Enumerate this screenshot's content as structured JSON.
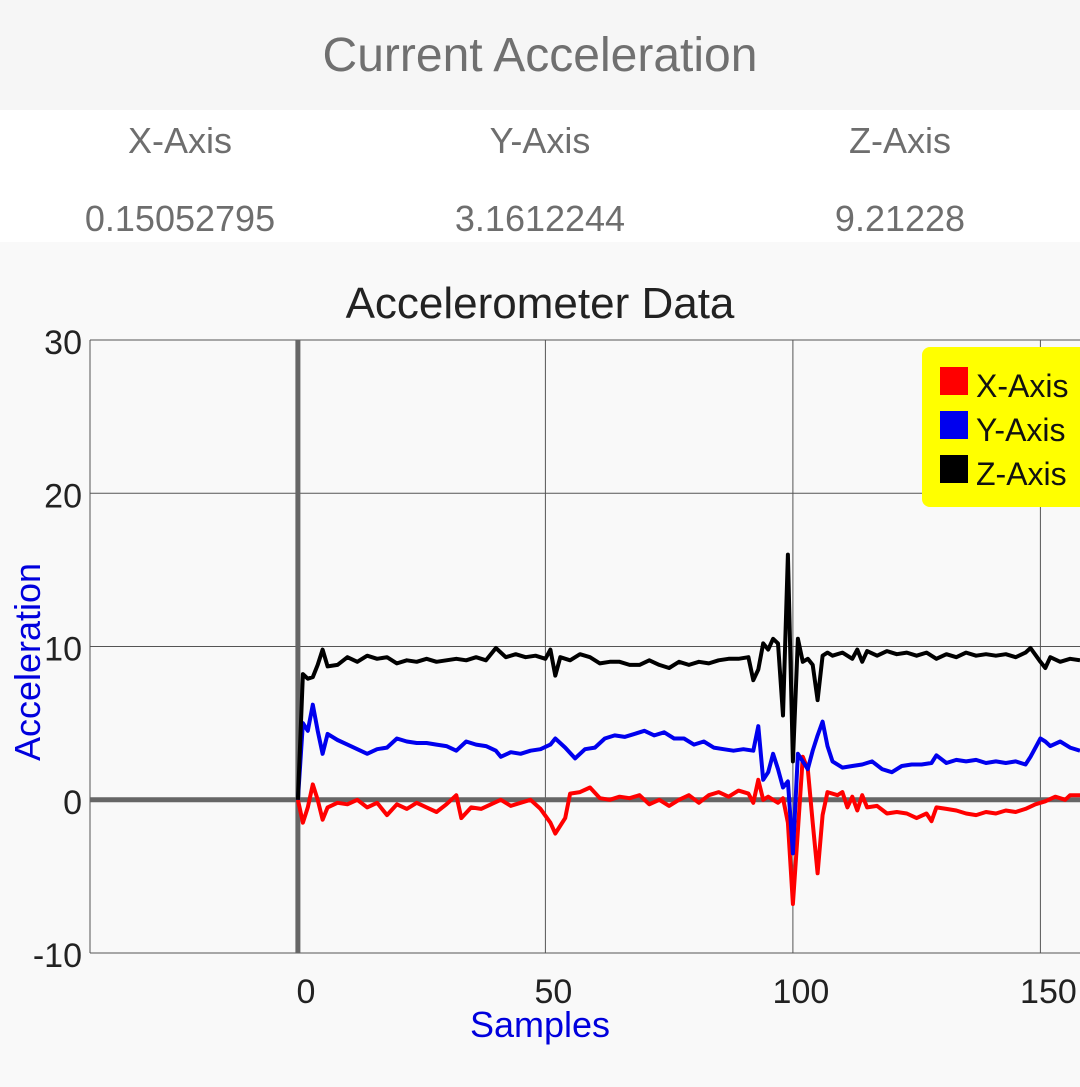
{
  "header": {
    "title": "Current Acceleration"
  },
  "readings": [
    {
      "label": "X-Axis",
      "value": "0.15052795"
    },
    {
      "label": "Y-Axis",
      "value": "3.1612244"
    },
    {
      "label": "Z-Axis",
      "value": "9.21228"
    }
  ],
  "chart_data": {
    "type": "line",
    "title": "Accelerometer Data",
    "xlabel": "Samples",
    "ylabel": "Acceleration",
    "xlim": [
      -42,
      158
    ],
    "ylim": [
      -10,
      30
    ],
    "x_ticks": [
      0,
      50,
      100,
      150
    ],
    "y_ticks": [
      30,
      20,
      10,
      0,
      -10
    ],
    "grid": true,
    "legend_position": "top-right",
    "colors": {
      "x": "#ff0000",
      "y": "#0000ee",
      "z": "#000000",
      "legend_bg": "#ffff00",
      "axis_label": "#0000dd"
    },
    "series": [
      {
        "name": "X-Axis",
        "color": "#ff0000",
        "points": [
          [
            0,
            0
          ],
          [
            1,
            -1.5
          ],
          [
            2,
            -0.5
          ],
          [
            3,
            1.0
          ],
          [
            4,
            0
          ],
          [
            5,
            -1.3
          ],
          [
            6,
            -0.5
          ],
          [
            8,
            -0.2
          ],
          [
            10,
            -0.3
          ],
          [
            12,
            0
          ],
          [
            14,
            -0.5
          ],
          [
            16,
            -0.2
          ],
          [
            18,
            -1.0
          ],
          [
            20,
            -0.3
          ],
          [
            22,
            -0.6
          ],
          [
            24,
            -0.2
          ],
          [
            26,
            -0.5
          ],
          [
            28,
            -0.8
          ],
          [
            30,
            -0.3
          ],
          [
            32,
            0.3
          ],
          [
            33,
            -1.2
          ],
          [
            35,
            -0.5
          ],
          [
            37,
            -0.6
          ],
          [
            39,
            -0.3
          ],
          [
            41,
            0
          ],
          [
            43,
            -0.4
          ],
          [
            45,
            -0.2
          ],
          [
            47,
            0
          ],
          [
            49,
            -0.6
          ],
          [
            51,
            -1.5
          ],
          [
            52,
            -2.2
          ],
          [
            54,
            -1.2
          ],
          [
            55,
            0.4
          ],
          [
            57,
            0.5
          ],
          [
            59,
            0.8
          ],
          [
            61,
            0.1
          ],
          [
            63,
            0
          ],
          [
            65,
            0.2
          ],
          [
            67,
            0.1
          ],
          [
            69,
            0.3
          ],
          [
            71,
            -0.3
          ],
          [
            73,
            0
          ],
          [
            75,
            -0.4
          ],
          [
            77,
            0
          ],
          [
            79,
            0.3
          ],
          [
            81,
            -0.2
          ],
          [
            83,
            0.3
          ],
          [
            85,
            0.5
          ],
          [
            87,
            0.2
          ],
          [
            89,
            0.6
          ],
          [
            91,
            0.4
          ],
          [
            92,
            -0.2
          ],
          [
            93,
            1.3
          ],
          [
            94,
            0
          ],
          [
            95,
            0.2
          ],
          [
            96,
            0
          ],
          [
            97,
            -0.2
          ],
          [
            98,
            0.1
          ],
          [
            99,
            -1.5
          ],
          [
            100,
            -6.8
          ],
          [
            101,
            -2.0
          ],
          [
            102,
            2.8
          ],
          [
            103,
            2.0
          ],
          [
            104,
            -1.5
          ],
          [
            105,
            -4.8
          ],
          [
            106,
            -1.0
          ],
          [
            107,
            0.5
          ],
          [
            109,
            0.3
          ],
          [
            110,
            0.5
          ],
          [
            111,
            -0.5
          ],
          [
            112,
            0.2
          ],
          [
            113,
            -0.7
          ],
          [
            114,
            0.3
          ],
          [
            115,
            -0.5
          ],
          [
            117,
            -0.4
          ],
          [
            119,
            -0.9
          ],
          [
            121,
            -0.8
          ],
          [
            123,
            -0.9
          ],
          [
            125,
            -1.2
          ],
          [
            127,
            -0.9
          ],
          [
            128,
            -1.4
          ],
          [
            129,
            -0.5
          ],
          [
            131,
            -0.6
          ],
          [
            133,
            -0.7
          ],
          [
            135,
            -0.9
          ],
          [
            137,
            -1.0
          ],
          [
            139,
            -0.8
          ],
          [
            141,
            -0.9
          ],
          [
            143,
            -0.7
          ],
          [
            145,
            -0.8
          ],
          [
            147,
            -0.6
          ],
          [
            149,
            -0.3
          ],
          [
            151,
            -0.1
          ],
          [
            153,
            0.2
          ],
          [
            155,
            0
          ],
          [
            156,
            0.3
          ],
          [
            158,
            0.3
          ]
        ]
      },
      {
        "name": "Y-Axis",
        "color": "#0000ee",
        "points": [
          [
            0,
            0
          ],
          [
            1,
            5.0
          ],
          [
            2,
            4.5
          ],
          [
            3,
            6.2
          ],
          [
            4,
            4.5
          ],
          [
            5,
            3.0
          ],
          [
            6,
            4.3
          ],
          [
            8,
            3.9
          ],
          [
            10,
            3.6
          ],
          [
            12,
            3.3
          ],
          [
            14,
            3.0
          ],
          [
            16,
            3.3
          ],
          [
            18,
            3.4
          ],
          [
            20,
            4.0
          ],
          [
            22,
            3.8
          ],
          [
            24,
            3.7
          ],
          [
            26,
            3.7
          ],
          [
            28,
            3.6
          ],
          [
            30,
            3.5
          ],
          [
            32,
            3.2
          ],
          [
            34,
            3.8
          ],
          [
            36,
            3.6
          ],
          [
            38,
            3.5
          ],
          [
            40,
            3.2
          ],
          [
            41,
            2.8
          ],
          [
            43,
            3.1
          ],
          [
            45,
            3.0
          ],
          [
            47,
            3.2
          ],
          [
            49,
            3.3
          ],
          [
            51,
            3.6
          ],
          [
            52,
            4.0
          ],
          [
            54,
            3.4
          ],
          [
            56,
            2.7
          ],
          [
            58,
            3.3
          ],
          [
            60,
            3.4
          ],
          [
            62,
            4.0
          ],
          [
            64,
            4.2
          ],
          [
            66,
            4.1
          ],
          [
            68,
            4.3
          ],
          [
            70,
            4.5
          ],
          [
            72,
            4.2
          ],
          [
            74,
            4.4
          ],
          [
            76,
            4.0
          ],
          [
            78,
            4.0
          ],
          [
            80,
            3.6
          ],
          [
            82,
            3.8
          ],
          [
            84,
            3.4
          ],
          [
            86,
            3.3
          ],
          [
            88,
            3.2
          ],
          [
            90,
            3.3
          ],
          [
            92,
            3.2
          ],
          [
            93,
            4.8
          ],
          [
            94,
            1.3
          ],
          [
            95,
            1.8
          ],
          [
            96,
            3.0
          ],
          [
            97,
            2.0
          ],
          [
            98,
            0.8
          ],
          [
            99,
            1.2
          ],
          [
            100,
            -3.5
          ],
          [
            101,
            3.0
          ],
          [
            102,
            2.5
          ],
          [
            103,
            2.0
          ],
          [
            104,
            3.2
          ],
          [
            105,
            4.2
          ],
          [
            106,
            5.1
          ],
          [
            107,
            3.5
          ],
          [
            108,
            2.5
          ],
          [
            110,
            2.1
          ],
          [
            112,
            2.2
          ],
          [
            114,
            2.3
          ],
          [
            116,
            2.5
          ],
          [
            118,
            2.0
          ],
          [
            120,
            1.8
          ],
          [
            122,
            2.2
          ],
          [
            124,
            2.3
          ],
          [
            126,
            2.3
          ],
          [
            128,
            2.4
          ],
          [
            129,
            2.9
          ],
          [
            131,
            2.4
          ],
          [
            133,
            2.6
          ],
          [
            135,
            2.5
          ],
          [
            137,
            2.6
          ],
          [
            139,
            2.4
          ],
          [
            141,
            2.5
          ],
          [
            143,
            2.4
          ],
          [
            145,
            2.5
          ],
          [
            147,
            2.3
          ],
          [
            148,
            2.8
          ],
          [
            150,
            4.0
          ],
          [
            151,
            3.8
          ],
          [
            152,
            3.5
          ],
          [
            154,
            3.8
          ],
          [
            156,
            3.4
          ],
          [
            158,
            3.2
          ]
        ]
      },
      {
        "name": "Z-Axis",
        "color": "#000000",
        "points": [
          [
            0,
            0
          ],
          [
            1,
            8.2
          ],
          [
            2,
            7.9
          ],
          [
            3,
            8.0
          ],
          [
            4,
            8.8
          ],
          [
            5,
            9.8
          ],
          [
            6,
            8.7
          ],
          [
            8,
            8.8
          ],
          [
            10,
            9.3
          ],
          [
            12,
            9.0
          ],
          [
            14,
            9.4
          ],
          [
            16,
            9.2
          ],
          [
            18,
            9.3
          ],
          [
            20,
            8.9
          ],
          [
            22,
            9.1
          ],
          [
            24,
            9.0
          ],
          [
            26,
            9.2
          ],
          [
            28,
            9.0
          ],
          [
            30,
            9.1
          ],
          [
            32,
            9.2
          ],
          [
            34,
            9.1
          ],
          [
            36,
            9.3
          ],
          [
            38,
            9.1
          ],
          [
            40,
            9.9
          ],
          [
            42,
            9.3
          ],
          [
            44,
            9.5
          ],
          [
            46,
            9.3
          ],
          [
            48,
            9.4
          ],
          [
            50,
            9.2
          ],
          [
            51,
            9.8
          ],
          [
            52,
            8.1
          ],
          [
            53,
            9.3
          ],
          [
            55,
            9.1
          ],
          [
            57,
            9.5
          ],
          [
            59,
            9.3
          ],
          [
            61,
            8.9
          ],
          [
            63,
            9.0
          ],
          [
            65,
            9.0
          ],
          [
            67,
            8.8
          ],
          [
            69,
            8.8
          ],
          [
            71,
            9.1
          ],
          [
            73,
            8.8
          ],
          [
            75,
            8.6
          ],
          [
            77,
            9.0
          ],
          [
            79,
            8.8
          ],
          [
            81,
            9.0
          ],
          [
            83,
            8.9
          ],
          [
            85,
            9.1
          ],
          [
            87,
            9.2
          ],
          [
            89,
            9.2
          ],
          [
            91,
            9.3
          ],
          [
            92,
            7.8
          ],
          [
            93,
            8.5
          ],
          [
            94,
            10.2
          ],
          [
            95,
            9.8
          ],
          [
            96,
            10.5
          ],
          [
            97,
            10.2
          ],
          [
            98,
            5.5
          ],
          [
            99,
            16.0
          ],
          [
            100,
            2.5
          ],
          [
            101,
            10.5
          ],
          [
            102,
            9.0
          ],
          [
            103,
            9.2
          ],
          [
            104,
            8.8
          ],
          [
            105,
            6.5
          ],
          [
            106,
            9.4
          ],
          [
            107,
            9.6
          ],
          [
            108,
            9.4
          ],
          [
            110,
            9.6
          ],
          [
            112,
            9.2
          ],
          [
            113,
            9.8
          ],
          [
            114,
            9.0
          ],
          [
            115,
            9.7
          ],
          [
            117,
            9.4
          ],
          [
            119,
            9.7
          ],
          [
            121,
            9.5
          ],
          [
            123,
            9.6
          ],
          [
            125,
            9.4
          ],
          [
            127,
            9.6
          ],
          [
            129,
            9.2
          ],
          [
            131,
            9.5
          ],
          [
            133,
            9.3
          ],
          [
            135,
            9.6
          ],
          [
            137,
            9.4
          ],
          [
            139,
            9.5
          ],
          [
            141,
            9.4
          ],
          [
            143,
            9.5
          ],
          [
            145,
            9.3
          ],
          [
            147,
            9.6
          ],
          [
            148,
            9.9
          ],
          [
            150,
            9.0
          ],
          [
            151,
            8.6
          ],
          [
            152,
            9.3
          ],
          [
            154,
            9.0
          ],
          [
            156,
            9.2
          ],
          [
            158,
            9.1
          ]
        ]
      }
    ]
  }
}
